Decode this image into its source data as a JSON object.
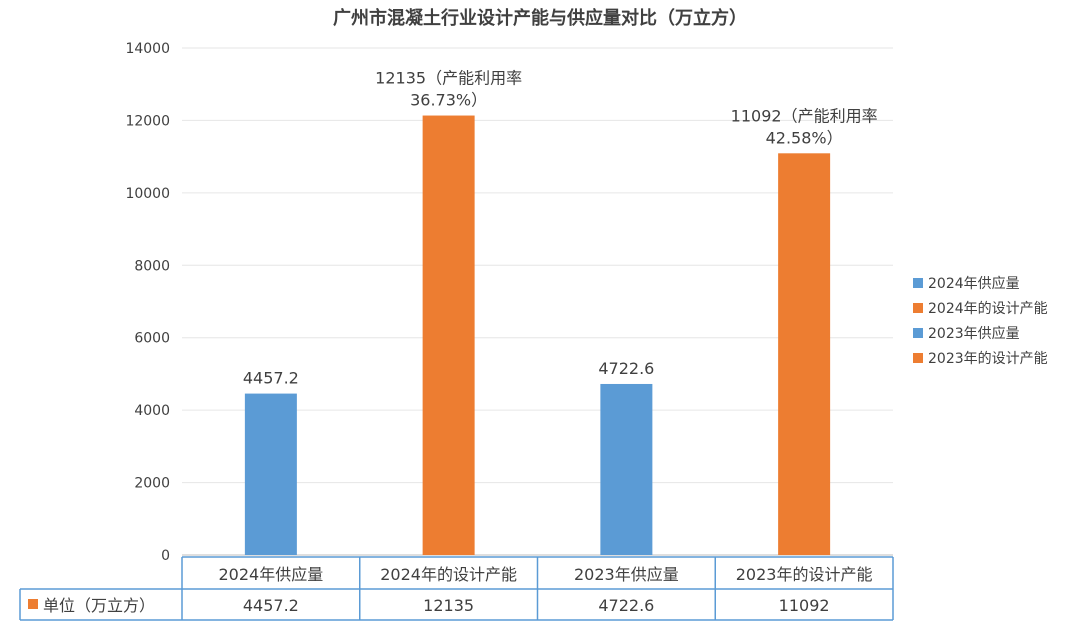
{
  "chart_data": {
    "type": "bar",
    "title": "广州市混凝土行业设计产能与供应量对比（万立方）",
    "categories": [
      "2024年供应量",
      "2024年的设计产能",
      "2023年供应量",
      "2023年的设计产能"
    ],
    "values": [
      4457.2,
      12135,
      4722.6,
      11092
    ],
    "bar_colors": [
      "#5b9bd5",
      "#ed7d31",
      "#5b9bd5",
      "#ed7d31"
    ],
    "data_labels": [
      [
        "4457.2"
      ],
      [
        "12135（产能利用率",
        "36.73%）"
      ],
      [
        "4722.6"
      ],
      [
        "11092（产能利用率",
        "42.58%）"
      ]
    ],
    "ylim": [
      0,
      14000
    ],
    "yticks": [
      0,
      2000,
      4000,
      6000,
      8000,
      10000,
      12000,
      14000
    ],
    "grid": true,
    "legend": {
      "placement": "right",
      "items": [
        {
          "label": "2024年供应量",
          "color": "#5b9bd5"
        },
        {
          "label": "2024年的设计产能",
          "color": "#ed7d31"
        },
        {
          "label": "2023年供应量",
          "color": "#5b9bd5"
        },
        {
          "label": "2023年的设计产能",
          "color": "#ed7d31"
        }
      ]
    },
    "data_table": {
      "row_label": "单位（万立方）",
      "row_marker_color": "#ed7d31",
      "values": [
        "4457.2",
        "12135",
        "4722.6",
        "11092"
      ]
    }
  }
}
